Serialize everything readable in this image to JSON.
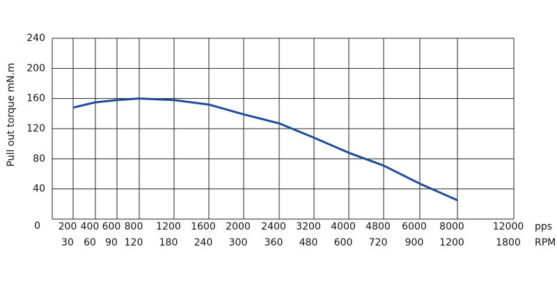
{
  "chart_data": {
    "type": "line",
    "y_label": "Pull out torque mN.m",
    "x_unit": "pps",
    "x2_unit": "RPM",
    "categories": [
      "200",
      "400",
      "600",
      "800",
      "1200",
      "1600",
      "2000",
      "2400",
      "3200",
      "4000",
      "4800",
      "6000",
      "8000",
      "12000"
    ],
    "categories2": [
      "30",
      "60",
      "90",
      "120",
      "180",
      "240",
      "300",
      "360",
      "480",
      "600",
      "720",
      "900",
      "1200",
      "1800"
    ],
    "series": [
      {
        "name": "Pull out torque",
        "color": "#1c4c97",
        "values": [
          148,
          155,
          158,
          160,
          158,
          152,
          139,
          127,
          108,
          88,
          71,
          47,
          25,
          null
        ]
      }
    ],
    "ylim": [
      0,
      240
    ],
    "yticks": [
      0,
      40,
      80,
      120,
      160,
      200,
      240
    ],
    "grid": true
  }
}
